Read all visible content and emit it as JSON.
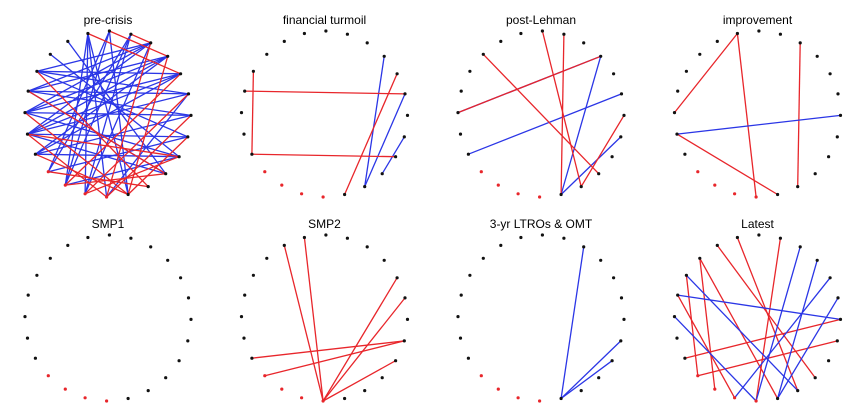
{
  "colors": {
    "red": "#e8262b",
    "blue": "#2b36e6",
    "black": "#111111"
  },
  "node_count": 24,
  "panels": [
    {
      "title": "pre-crisis",
      "red_nodes": [],
      "edges": [
        {
          "a": 0,
          "b": 9,
          "c": "blue"
        },
        {
          "a": 0,
          "b": 10,
          "c": "blue"
        },
        {
          "a": 0,
          "b": 11,
          "c": "blue"
        },
        {
          "a": 0,
          "b": 12,
          "c": "blue"
        },
        {
          "a": 23,
          "b": 9,
          "c": "blue"
        },
        {
          "a": 23,
          "b": 8,
          "c": "blue"
        },
        {
          "a": 23,
          "b": 12,
          "c": "blue"
        },
        {
          "a": 22,
          "b": 8,
          "c": "blue"
        },
        {
          "a": 22,
          "b": 9,
          "c": "blue"
        },
        {
          "a": 22,
          "b": 10,
          "c": "blue"
        },
        {
          "a": 21,
          "b": 3,
          "c": "blue"
        },
        {
          "a": 21,
          "b": 4,
          "c": "blue"
        },
        {
          "a": 21,
          "b": 5,
          "c": "blue"
        },
        {
          "a": 21,
          "b": 6,
          "c": "blue"
        },
        {
          "a": 21,
          "b": 10,
          "c": "blue"
        },
        {
          "a": 20,
          "b": 4,
          "c": "blue"
        },
        {
          "a": 20,
          "b": 5,
          "c": "blue"
        },
        {
          "a": 20,
          "b": 6,
          "c": "blue"
        },
        {
          "a": 20,
          "b": 7,
          "c": "blue"
        },
        {
          "a": 19,
          "b": 3,
          "c": "blue"
        },
        {
          "a": 19,
          "b": 5,
          "c": "blue"
        },
        {
          "a": 19,
          "b": 6,
          "c": "blue"
        },
        {
          "a": 19,
          "b": 7,
          "c": "blue"
        },
        {
          "a": 18,
          "b": 3,
          "c": "blue"
        },
        {
          "a": 18,
          "b": 4,
          "c": "blue"
        },
        {
          "a": 18,
          "b": 6,
          "c": "blue"
        },
        {
          "a": 18,
          "b": 11,
          "c": "blue"
        },
        {
          "a": 17,
          "b": 4,
          "c": "blue"
        },
        {
          "a": 17,
          "b": 5,
          "c": "blue"
        },
        {
          "a": 17,
          "b": 7,
          "c": "blue"
        },
        {
          "a": 16,
          "b": 3,
          "c": "blue"
        },
        {
          "a": 16,
          "b": 6,
          "c": "blue"
        },
        {
          "a": 16,
          "b": 8,
          "c": "blue"
        },
        {
          "a": 15,
          "b": 5,
          "c": "blue"
        },
        {
          "a": 15,
          "b": 7,
          "c": "blue"
        },
        {
          "a": 15,
          "b": 9,
          "c": "blue"
        },
        {
          "a": 14,
          "b": 4,
          "c": "blue"
        },
        {
          "a": 14,
          "b": 6,
          "c": "blue"
        },
        {
          "a": 1,
          "b": 14,
          "c": "blue"
        },
        {
          "a": 2,
          "b": 15,
          "c": "blue"
        },
        {
          "a": 0,
          "b": 19,
          "c": "red"
        },
        {
          "a": 23,
          "b": 20,
          "c": "red"
        },
        {
          "a": 22,
          "b": 21,
          "c": "red"
        },
        {
          "a": 21,
          "b": 11,
          "c": "red"
        },
        {
          "a": 20,
          "b": 12,
          "c": "red"
        },
        {
          "a": 19,
          "b": 9,
          "c": "red"
        },
        {
          "a": 18,
          "b": 10,
          "c": "red"
        },
        {
          "a": 17,
          "b": 11,
          "c": "red"
        },
        {
          "a": 16,
          "b": 12,
          "c": "red"
        },
        {
          "a": 15,
          "b": 10,
          "c": "red"
        },
        {
          "a": 14,
          "b": 9,
          "c": "red"
        },
        {
          "a": 13,
          "b": 8,
          "c": "red"
        },
        {
          "a": 12,
          "b": 7,
          "c": "red"
        },
        {
          "a": 11,
          "b": 6,
          "c": "red"
        },
        {
          "a": 3,
          "b": 13,
          "c": "red"
        },
        {
          "a": 4,
          "b": 14,
          "c": "red"
        },
        {
          "a": 5,
          "b": 12,
          "c": "red"
        },
        {
          "a": 6,
          "b": 15,
          "c": "red"
        }
      ]
    },
    {
      "title": "financial turmoil",
      "red_nodes": [],
      "edges": [
        {
          "a": 20,
          "b": 13,
          "c": "blue"
        },
        {
          "a": 18,
          "b": 13,
          "c": "blue"
        },
        {
          "a": 16,
          "b": 14,
          "c": "blue"
        },
        {
          "a": 3,
          "b": 7,
          "c": "red"
        },
        {
          "a": 4,
          "b": 18,
          "c": "red"
        },
        {
          "a": 7,
          "b": 15,
          "c": "red"
        },
        {
          "a": 19,
          "b": 12,
          "c": "red"
        }
      ]
    },
    {
      "title": "post-Lehman",
      "red_nodes": [],
      "edges": [
        {
          "a": 20,
          "b": 5,
          "c": "blue"
        },
        {
          "a": 20,
          "b": 12,
          "c": "blue"
        },
        {
          "a": 18,
          "b": 7,
          "c": "blue"
        },
        {
          "a": 16,
          "b": 12,
          "c": "blue"
        },
        {
          "a": 22,
          "b": 12,
          "c": "red"
        },
        {
          "a": 23,
          "b": 13,
          "c": "red"
        },
        {
          "a": 20,
          "b": 5,
          "c": "red"
        },
        {
          "a": 17,
          "b": 13,
          "c": "red"
        },
        {
          "a": 2,
          "b": 14,
          "c": "red"
        }
      ]
    },
    {
      "title": "improvement",
      "red_nodes": [],
      "edges": [
        {
          "a": 0,
          "b": 5,
          "c": "red"
        },
        {
          "a": 0,
          "b": 11,
          "c": "red"
        },
        {
          "a": 21,
          "b": 13,
          "c": "red"
        },
        {
          "a": 6,
          "b": 12,
          "c": "red"
        },
        {
          "a": 17,
          "b": 6,
          "c": "blue"
        }
      ]
    },
    {
      "title": "SMP1",
      "red_nodes": [],
      "edges": []
    },
    {
      "title": "SMP2",
      "red_nodes": [],
      "edges": [
        {
          "a": 0,
          "b": 11,
          "c": "red"
        },
        {
          "a": 1,
          "b": 11,
          "c": "red"
        },
        {
          "a": 19,
          "b": 11,
          "c": "red"
        },
        {
          "a": 18,
          "b": 11,
          "c": "red"
        },
        {
          "a": 16,
          "b": 7,
          "c": "red"
        },
        {
          "a": 16,
          "b": 8,
          "c": "red"
        },
        {
          "a": 15,
          "b": 11,
          "c": "red"
        }
      ]
    },
    {
      "title": "3-yr LTROs & OMT",
      "red_nodes": [],
      "edges": [
        {
          "a": 21,
          "b": 12,
          "c": "blue"
        },
        {
          "a": 16,
          "b": 12,
          "c": "blue"
        },
        {
          "a": 15,
          "b": 12,
          "c": "blue"
        }
      ]
    },
    {
      "title": "Latest",
      "red_nodes": [],
      "edges": [
        {
          "a": 22,
          "b": 11,
          "c": "red"
        },
        {
          "a": 0,
          "b": 13,
          "c": "red"
        },
        {
          "a": 1,
          "b": 14,
          "c": "red"
        },
        {
          "a": 2,
          "b": 12,
          "c": "red"
        },
        {
          "a": 2,
          "b": 9,
          "c": "red"
        },
        {
          "a": 3,
          "b": 8,
          "c": "red"
        },
        {
          "a": 4,
          "b": 10,
          "c": "red"
        },
        {
          "a": 16,
          "b": 8,
          "c": "red"
        },
        {
          "a": 17,
          "b": 7,
          "c": "red"
        },
        {
          "a": 20,
          "b": 12,
          "c": "blue"
        },
        {
          "a": 21,
          "b": 11,
          "c": "blue"
        },
        {
          "a": 19,
          "b": 10,
          "c": "blue"
        },
        {
          "a": 18,
          "b": 12,
          "c": "blue"
        },
        {
          "a": 3,
          "b": 13,
          "c": "blue"
        },
        {
          "a": 5,
          "b": 11,
          "c": "blue"
        },
        {
          "a": 4,
          "b": 17,
          "c": "blue"
        }
      ]
    }
  ]
}
